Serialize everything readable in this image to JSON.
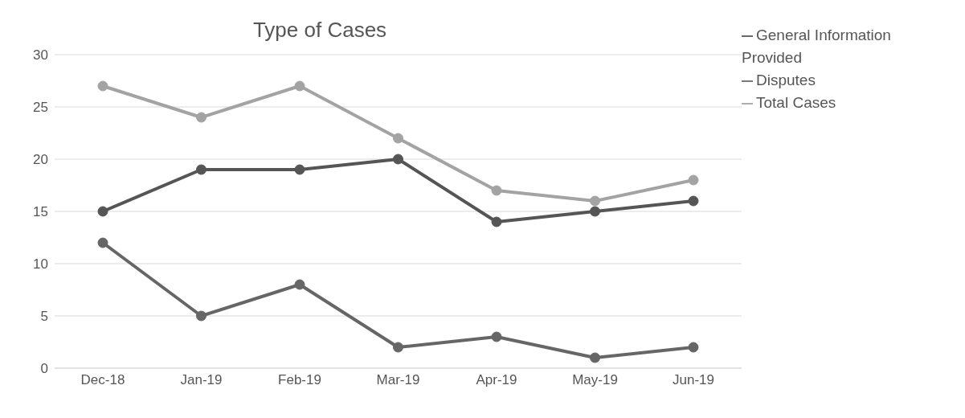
{
  "chart_data": {
    "type": "line",
    "title": "Type of Cases",
    "categories": [
      "Dec-18",
      "Jan-19",
      "Feb-19",
      "Mar-19",
      "Apr-19",
      "May-19",
      "Jun-19"
    ],
    "series": [
      {
        "name": "General Information Provided",
        "color": "#555555",
        "values": [
          15,
          19,
          19,
          20,
          14,
          15,
          16
        ]
      },
      {
        "name": "Disputes",
        "color": "#666666",
        "values": [
          12,
          5,
          8,
          2,
          3,
          1,
          2
        ]
      },
      {
        "name": "Total Cases",
        "color": "#a3a3a3",
        "values": [
          27,
          24,
          27,
          22,
          17,
          16,
          18
        ]
      }
    ],
    "ylim": [
      0,
      30
    ],
    "yticks": [
      0,
      5,
      10,
      15,
      20,
      25,
      30
    ],
    "grid": "y",
    "legend": "top right",
    "marker": "circle",
    "line_style": "solid"
  }
}
